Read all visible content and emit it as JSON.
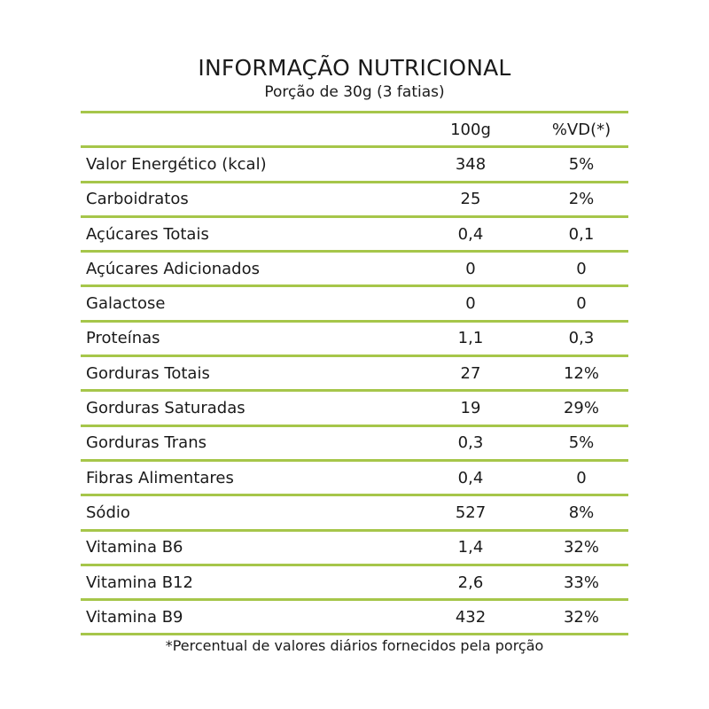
{
  "header": {
    "title": "INFORMAÇÃO NUTRICIONAL",
    "subtitle": "Porção de 30g (3 fatias)"
  },
  "table": {
    "columns": [
      "100g",
      "%VD(*)"
    ],
    "rows": [
      {
        "label": "Valor Energético (kcal)",
        "per100g": "348",
        "vd": "5%"
      },
      {
        "label": "Carboidratos",
        "per100g": "25",
        "vd": "2%"
      },
      {
        "label": "Açúcares Totais",
        "per100g": "0,4",
        "vd": "0,1"
      },
      {
        "label": "Açúcares Adicionados",
        "per100g": "0",
        "vd": "0"
      },
      {
        "label": "Galactose",
        "per100g": "0",
        "vd": "0"
      },
      {
        "label": "Proteínas",
        "per100g": "1,1",
        "vd": "0,3"
      },
      {
        "label": "Gorduras Totais",
        "per100g": "27",
        "vd": "12%"
      },
      {
        "label": "Gorduras Saturadas",
        "per100g": "19",
        "vd": "29%"
      },
      {
        "label": "Gorduras Trans",
        "per100g": "0,3",
        "vd": "5%"
      },
      {
        "label": "Fibras Alimentares",
        "per100g": "0,4",
        "vd": "0"
      },
      {
        "label": "Sódio",
        "per100g": "527",
        "vd": "8%"
      },
      {
        "label": "Vitamina B6",
        "per100g": "1,4",
        "vd": "32%"
      },
      {
        "label": "Vitamina B12",
        "per100g": "2,6",
        "vd": "33%"
      },
      {
        "label": "Vitamina B9",
        "per100g": "432",
        "vd": "32%"
      }
    ]
  },
  "footnote": "*Percentual de valores diários fornecidos pela porção",
  "colors": {
    "rule": "#a6c64a",
    "text": "#1a1a1a"
  }
}
